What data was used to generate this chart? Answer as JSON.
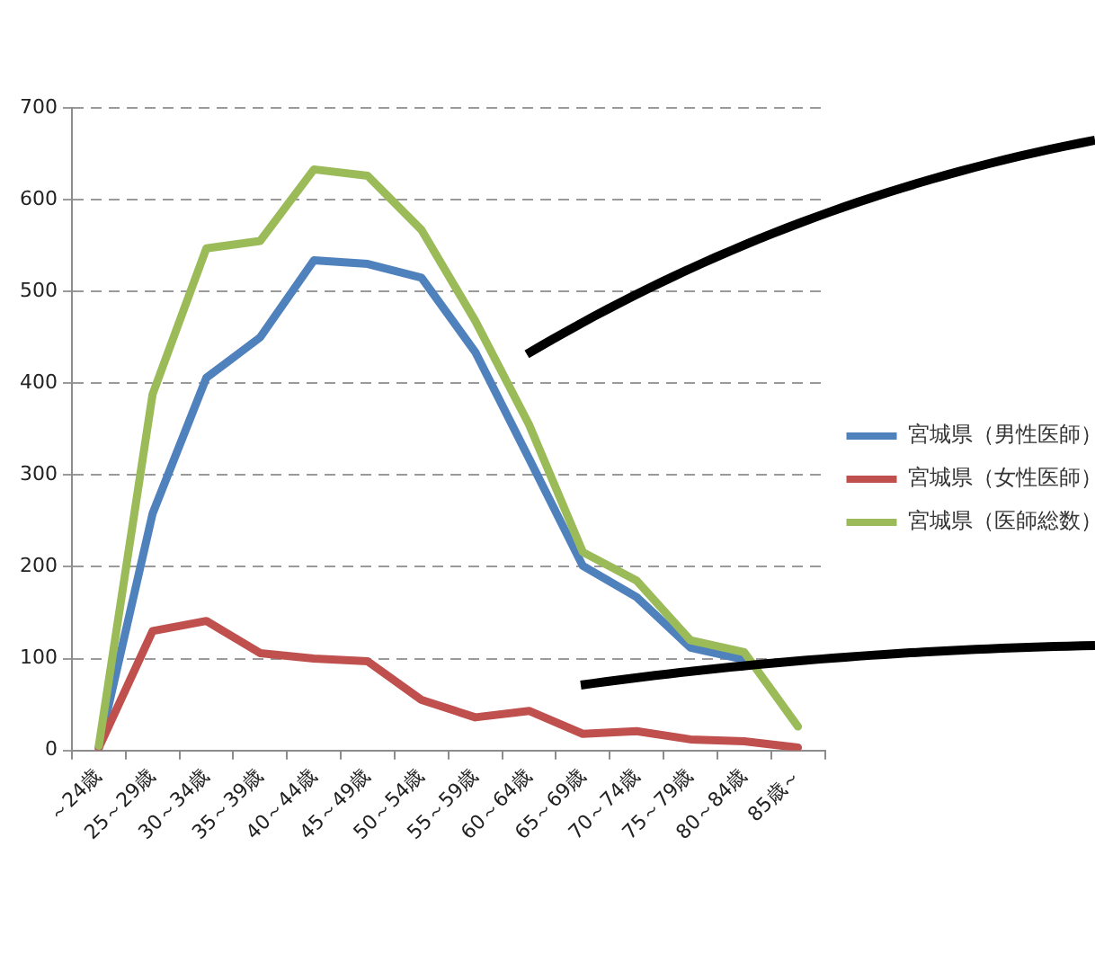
{
  "chart_data": {
    "type": "line",
    "categories": [
      "～24歳",
      "25～29歳",
      "30～34歳",
      "35～39歳",
      "40～44歳",
      "45～49歳",
      "50～54歳",
      "55～59歳",
      "60～64歳",
      "65～69歳",
      "70～74歳",
      "75～79歳",
      "80～84歳",
      "85歳～"
    ],
    "series": [
      {
        "name": "宮城県（男性医師）",
        "color": "#4f81bd",
        "values": [
          2,
          258,
          406,
          450,
          534,
          530,
          515,
          434,
          318,
          201,
          167,
          112,
          99,
          null
        ]
      },
      {
        "name": "宮城県（女性医師）",
        "color": "#c0504d",
        "values": [
          3,
          130,
          141,
          106,
          100,
          97,
          55,
          36,
          43,
          18,
          21,
          12,
          10,
          3
        ]
      },
      {
        "name": "宮城県（医師総数）",
        "color": "#9bbb59",
        "values": [
          5,
          388,
          547,
          555,
          633,
          626,
          567,
          468,
          355,
          216,
          185,
          120,
          107,
          26
        ]
      }
    ],
    "ylim": [
      0,
      700
    ],
    "yticks": [
      0,
      100,
      200,
      300,
      400,
      500,
      600,
      700
    ],
    "grid": "y",
    "legend": "right",
    "marker": "none",
    "line_style": "solid"
  }
}
